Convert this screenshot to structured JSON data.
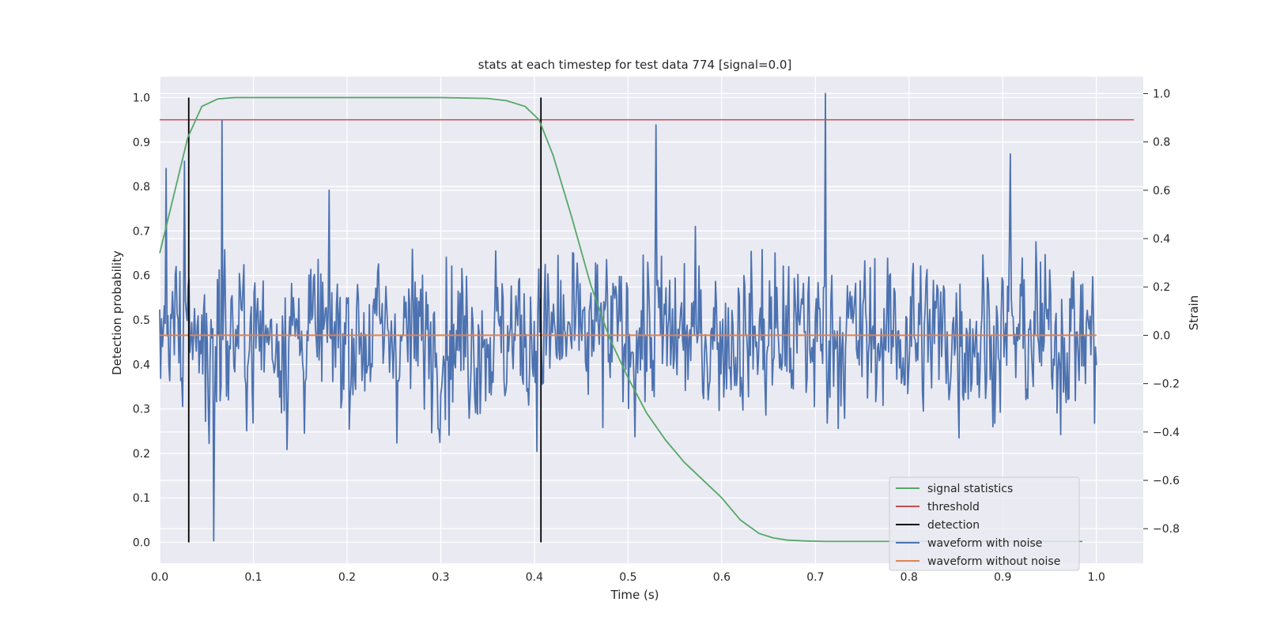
{
  "chart_data": {
    "type": "line",
    "title": "stats at each timestep for test data 774 [signal=0.0]",
    "xlabel": "Time (s)",
    "ylabel": "Detection probability",
    "y2label": "Strain",
    "xlim": [
      0.0,
      1.05
    ],
    "ylim": [
      -0.047,
      1.047
    ],
    "y2lim": [
      -0.943,
      1.07
    ],
    "xticks": [
      "0.0",
      "0.1",
      "0.2",
      "0.3",
      "0.4",
      "0.5",
      "0.6",
      "0.7",
      "0.8",
      "0.9",
      "1.0"
    ],
    "yticks": [
      "0.0",
      "0.1",
      "0.2",
      "0.3",
      "0.4",
      "0.5",
      "0.6",
      "0.7",
      "0.8",
      "0.9",
      "1.0"
    ],
    "y2ticks": [
      "−0.8",
      "−0.6",
      "−0.4",
      "−0.2",
      "0.0",
      "0.2",
      "0.4",
      "0.6",
      "0.8",
      "1.0"
    ],
    "grid": true,
    "legend_position": "lower-right",
    "colors": {
      "signal": "#55a868",
      "threshold": "#c44e52",
      "detection": "#000000",
      "noisy": "#4c72b0",
      "clean": "#dd8452",
      "plot_bg": "#eaeaf2",
      "grid": "#ffffff"
    },
    "series": [
      {
        "name": "signal statistics",
        "axis": "left",
        "x": [
          0.0,
          0.015,
          0.03,
          0.045,
          0.062,
          0.08,
          0.1,
          0.2,
          0.3,
          0.35,
          0.37,
          0.39,
          0.405,
          0.42,
          0.44,
          0.46,
          0.48,
          0.5,
          0.52,
          0.54,
          0.56,
          0.58,
          0.6,
          0.62,
          0.64,
          0.655,
          0.67,
          0.69,
          0.71,
          0.75,
          0.8,
          0.85,
          0.9,
          0.95,
          0.985
        ],
        "y": [
          0.65,
          0.78,
          0.91,
          0.98,
          0.997,
          1.0,
          1.0,
          1.0,
          1.0,
          0.998,
          0.993,
          0.98,
          0.95,
          0.87,
          0.73,
          0.58,
          0.46,
          0.37,
          0.29,
          0.23,
          0.18,
          0.14,
          0.1,
          0.05,
          0.02,
          0.01,
          0.005,
          0.003,
          0.002,
          0.002,
          0.002,
          0.002,
          0.002,
          0.002,
          0.002
        ]
      },
      {
        "name": "threshold",
        "axis": "left",
        "x": [
          0.0,
          1.04
        ],
        "y": [
          0.95,
          0.95
        ]
      },
      {
        "name": "detection",
        "axis": "left",
        "segments": [
          {
            "x": 0.031,
            "y": [
              0.0,
              1.0
            ]
          },
          {
            "x": 0.407,
            "y": [
              0.0,
              1.0
            ]
          }
        ]
      },
      {
        "name": "waveform with noise",
        "axis": "right",
        "x_range": [
          0.0,
          1.0
        ],
        "num_points": 1024,
        "amplitude_range": [
          -0.85,
          1.0
        ],
        "spikes": [
          {
            "x": 0.058,
            "y": -0.85
          },
          {
            "x": 0.066,
            "y": 0.89
          },
          {
            "x": 0.53,
            "y": 0.87
          },
          {
            "x": 0.711,
            "y": 1.0
          },
          {
            "x": 0.908,
            "y": 0.75
          },
          {
            "x": 0.026,
            "y": 0.72
          },
          {
            "x": 0.007,
            "y": 0.69
          }
        ]
      },
      {
        "name": "waveform without noise",
        "axis": "right",
        "x": [
          0.0,
          1.0
        ],
        "y": [
          0.0,
          0.0
        ]
      }
    ]
  }
}
